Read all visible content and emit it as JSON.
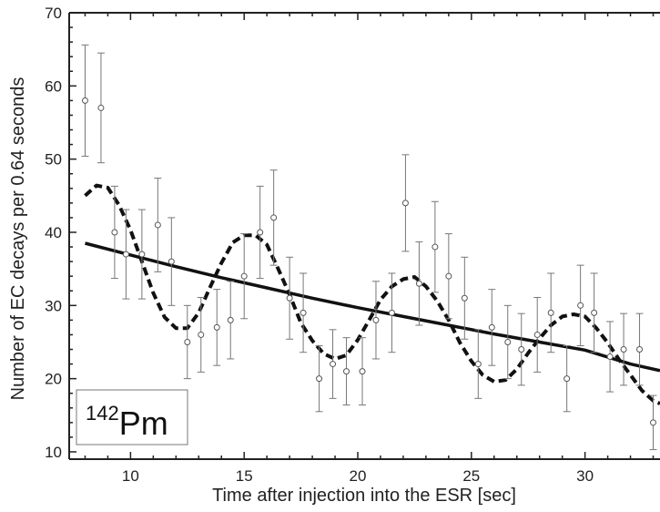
{
  "chart_data": {
    "type": "scatter",
    "xlabel": "Time after injection into the ESR [sec]",
    "ylabel": "Number of EC decays per 0.64 seconds",
    "xlim": [
      7.3,
      33.3
    ],
    "ylim": [
      9,
      70
    ],
    "x_ticks": [
      10,
      15,
      20,
      25,
      30
    ],
    "x_tick_labels": [
      "10",
      "15",
      "20",
      "25",
      "30"
    ],
    "y_ticks": [
      10,
      20,
      30,
      40,
      50,
      60,
      70
    ],
    "y_tick_labels": [
      "10",
      "20",
      "30",
      "40",
      "50",
      "60",
      "70"
    ],
    "grid": false,
    "legend": "none",
    "annotation": {
      "mass_number": "142",
      "element": "Pm"
    },
    "series": [
      {
        "style": "markers-with-error-bars",
        "x": [
          8.0,
          8.7,
          9.3,
          9.8,
          10.5,
          11.2,
          11.8,
          12.5,
          13.1,
          13.8,
          14.4,
          15.0,
          15.7,
          16.3,
          17.0,
          17.6,
          18.3,
          18.9,
          19.5,
          20.2,
          20.8,
          21.5,
          22.1,
          22.7,
          23.4,
          24.0,
          24.7,
          25.3,
          25.9,
          26.6,
          27.2,
          27.9,
          28.5,
          29.2,
          29.8,
          30.4,
          31.1,
          31.7,
          32.4,
          33.0
        ],
        "y": [
          58,
          57,
          40,
          37,
          37,
          41,
          36,
          25,
          26,
          27,
          28,
          34,
          40,
          42,
          31,
          29,
          20,
          22,
          21,
          21,
          28,
          29,
          44,
          33,
          38,
          34,
          31,
          22,
          27,
          25,
          24,
          26,
          29,
          20,
          30,
          29,
          23,
          24,
          24,
          14
        ],
        "error": [
          7.6,
          7.5,
          6.3,
          6.1,
          6.1,
          6.4,
          6.0,
          5.0,
          5.1,
          5.2,
          5.3,
          5.8,
          6.3,
          6.5,
          5.6,
          5.4,
          4.5,
          4.7,
          4.6,
          4.6,
          5.3,
          5.4,
          6.6,
          5.7,
          6.2,
          5.8,
          5.6,
          4.7,
          5.2,
          5.0,
          4.9,
          5.1,
          5.4,
          4.5,
          5.5,
          5.4,
          4.8,
          4.9,
          4.9,
          3.7
        ]
      },
      {
        "style": "solid-line",
        "x": [
          8,
          10,
          12,
          14,
          16,
          18,
          20,
          22,
          24,
          26,
          28,
          30,
          32,
          33.3
        ],
        "y": [
          38.5,
          36.9,
          35.3,
          33.8,
          32.4,
          31.0,
          29.7,
          28.5,
          27.3,
          26.1,
          25.0,
          23.9,
          22.0,
          21.1
        ]
      },
      {
        "style": "dashed-line",
        "x": [
          8.0,
          8.5,
          9.0,
          9.5,
          10.0,
          10.5,
          11.0,
          11.5,
          12.0,
          12.5,
          13.0,
          13.5,
          14.0,
          14.5,
          15.0,
          15.5,
          16.0,
          16.5,
          17.0,
          17.5,
          18.0,
          18.5,
          19.0,
          19.5,
          20.0,
          20.5,
          21.0,
          21.5,
          22.0,
          22.5,
          23.0,
          23.5,
          24.0,
          24.5,
          25.0,
          25.5,
          26.0,
          26.5,
          27.0,
          27.5,
          28.0,
          28.5,
          29.0,
          29.5,
          30.0,
          30.5,
          31.0,
          31.5,
          32.0,
          32.5,
          33.0,
          33.3
        ],
        "y": [
          45.0,
          46.4,
          46.1,
          43.7,
          40.3,
          36.0,
          31.7,
          28.4,
          26.9,
          26.9,
          29.0,
          32.5,
          35.8,
          38.6,
          39.6,
          39.6,
          38.3,
          35.0,
          31.5,
          27.6,
          25.2,
          23.4,
          22.7,
          23.2,
          25.3,
          28.0,
          30.8,
          32.6,
          33.6,
          33.9,
          32.6,
          30.6,
          28.0,
          24.9,
          22.4,
          20.5,
          19.6,
          19.8,
          21.3,
          23.5,
          25.5,
          27.3,
          28.5,
          28.8,
          28.5,
          26.9,
          24.9,
          22.6,
          20.5,
          18.4,
          17.0,
          16.6
        ]
      }
    ]
  }
}
